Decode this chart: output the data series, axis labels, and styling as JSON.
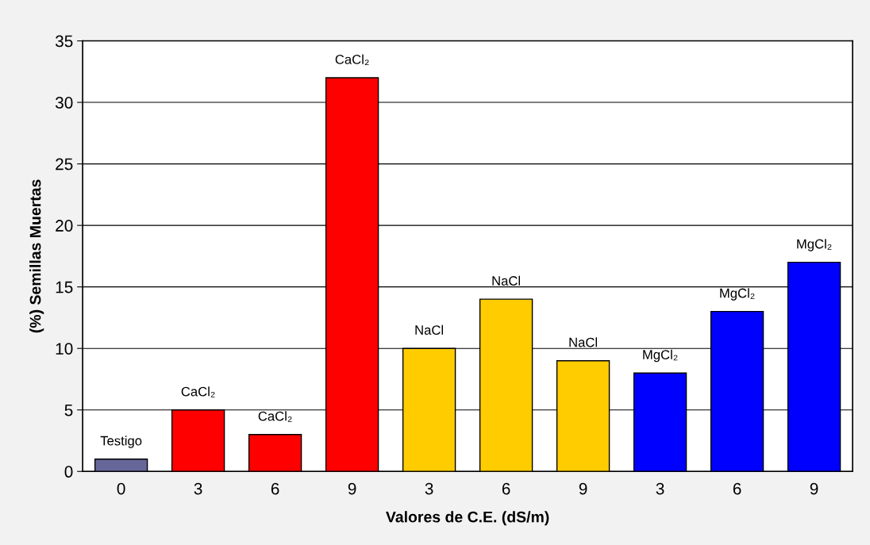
{
  "chart_data": {
    "type": "bar",
    "xlabel": "Valores de C.E. (dS/m)",
    "ylabel": "(%) Semillas Muertas",
    "categories": [
      "0",
      "3",
      "6",
      "9",
      "3",
      "6",
      "9",
      "3",
      "6",
      "9"
    ],
    "values": [
      1,
      5,
      3,
      32,
      10,
      14,
      9,
      8,
      13,
      17
    ],
    "colors": [
      "#666699",
      "#ff0000",
      "#ff0000",
      "#ff0000",
      "#ffcc00",
      "#ffcc00",
      "#ffcc00",
      "#0000ff",
      "#0000ff",
      "#0000ff"
    ],
    "value_labels": [
      "Testigo",
      "CaCl₂",
      "CaCl₂",
      "CaCl₂",
      "NaCl",
      "NaCl",
      "NaCl",
      "MgCl₂",
      "MgCl₂",
      "MgCl₂"
    ],
    "ylim": [
      0,
      35
    ],
    "yticks": [
      0,
      5,
      10,
      15,
      20,
      25,
      30,
      35
    ],
    "grid": "y",
    "legend": false
  }
}
